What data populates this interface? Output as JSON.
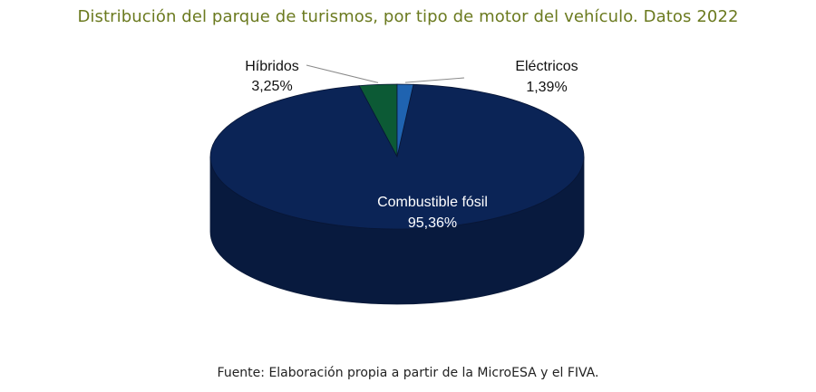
{
  "title": "Distribución del parque de turismos, por tipo de motor del vehículo. Datos 2022",
  "source": "Fuente: Elaboración propia a partir de la MicroESA y el FIVA.",
  "colors": {
    "title": "#6b7a1f",
    "Combustible fósil": "#0b2456",
    "Híbridos": "#0c5a35",
    "Eléctricos": "#1f63b0"
  },
  "chart_data": {
    "type": "pie",
    "title": "Distribución del parque de turismos, por tipo de motor del vehículo. Datos 2022",
    "slices": [
      {
        "label": "Combustible fósil",
        "value": 95.36,
        "value_text": "95,36%"
      },
      {
        "label": "Híbridos",
        "value": 3.25,
        "value_text": "3,25%"
      },
      {
        "label": "Eléctricos",
        "value": 1.39,
        "value_text": "1,39%"
      }
    ],
    "legend": "none",
    "style": "3d"
  }
}
